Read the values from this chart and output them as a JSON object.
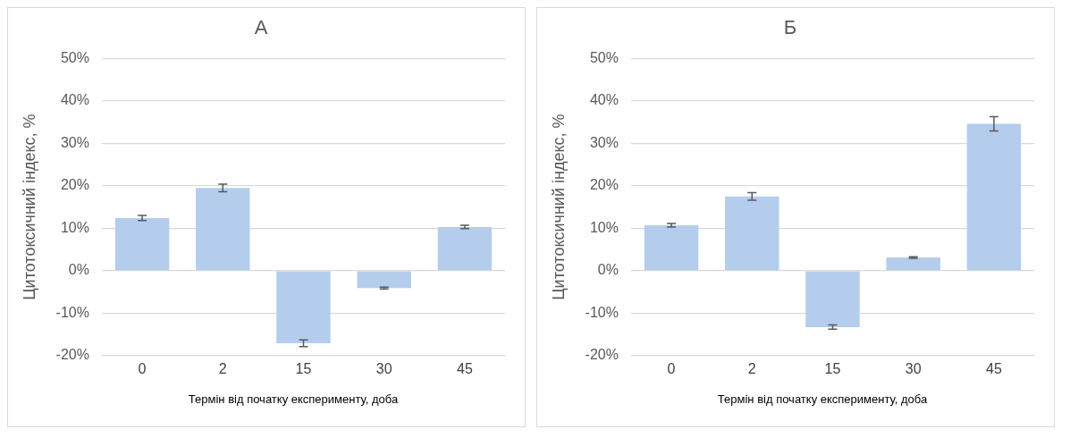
{
  "chart_data": [
    {
      "type": "bar",
      "title": "А",
      "xlabel": "Термін від початку експерименту, доба",
      "ylabel": "Цитотоксичний індекс, %",
      "categories": [
        "0",
        "2",
        "15",
        "30",
        "45"
      ],
      "series": [
        {
          "color": "#b4cdec",
          "values": [
            12.4,
            19.5,
            -17.1,
            -4.1,
            10.3
          ],
          "errors": [
            0.6,
            0.9,
            0.8,
            0.2,
            0.4
          ]
        }
      ],
      "ylim": [
        -20,
        50
      ],
      "yticks": [
        {
          "value": -20,
          "label": "-20%"
        },
        {
          "value": -10,
          "label": "-10%"
        },
        {
          "value": 0,
          "label": "0%"
        },
        {
          "value": 10,
          "label": "10%"
        },
        {
          "value": 20,
          "label": "20%"
        },
        {
          "value": 30,
          "label": "30%"
        },
        {
          "value": 40,
          "label": "40%"
        },
        {
          "value": 50,
          "label": "50%"
        }
      ],
      "grid": "y"
    },
    {
      "type": "bar",
      "title": "Б",
      "xlabel": "Термін від початку експерименту, доба",
      "ylabel": "Цитотоксичний індекс, %",
      "categories": [
        "0",
        "2",
        "15",
        "30",
        "45"
      ],
      "series": [
        {
          "color": "#b4cdec",
          "values": [
            10.7,
            17.5,
            -13.3,
            3.1,
            34.6
          ],
          "errors": [
            0.4,
            0.9,
            0.5,
            0.2,
            1.7
          ]
        }
      ],
      "ylim": [
        -20,
        50
      ],
      "yticks": [
        {
          "value": -20,
          "label": "-20%"
        },
        {
          "value": -10,
          "label": "-10%"
        },
        {
          "value": 0,
          "label": "0%"
        },
        {
          "value": 10,
          "label": "10%"
        },
        {
          "value": 20,
          "label": "20%"
        },
        {
          "value": 30,
          "label": "30%"
        },
        {
          "value": 40,
          "label": "40%"
        },
        {
          "value": 50,
          "label": "50%"
        }
      ],
      "grid": "y"
    }
  ]
}
